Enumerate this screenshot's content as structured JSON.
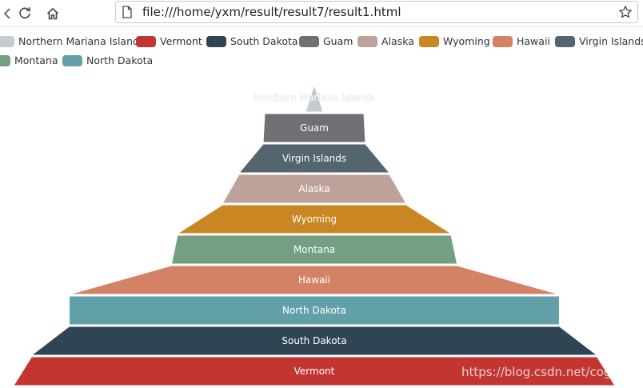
{
  "browser": {
    "url": "file:///home/yxm/result/result7/result1.html",
    "icons": {
      "reload": "reload-icon",
      "home": "home-icon",
      "page": "page-icon",
      "bookmark": "star-icon"
    }
  },
  "chart_data": {
    "type": "funnel",
    "sort": "ascending",
    "categories": [
      "Northern Mariana Islands",
      "Guam",
      "Virgin Islands",
      "Alaska",
      "Wyoming",
      "Montana",
      "Hawaii",
      "North Dakota",
      "South Dakota",
      "Vermont"
    ],
    "series": [
      {
        "values": [
          2,
          33,
          34,
          50,
          61,
          91,
          95,
          163,
          163,
          188
        ]
      }
    ],
    "legend": {
      "position": "top-left",
      "order": [
        "Northern Mariana Islands",
        "Vermont",
        "South Dakota",
        "Guam",
        "Alaska",
        "Wyoming",
        "Hawaii",
        "Virgin Islands",
        "Montana",
        "North Dakota"
      ]
    },
    "colors": {
      "Northern Mariana Islands": "#c4ccd3",
      "Vermont": "#c23531",
      "South Dakota": "#2f4554",
      "Guam": "#6e7074",
      "Alaska": "#bda29a",
      "Wyoming": "#ca8622",
      "Hawaii": "#d48265",
      "Virgin Islands": "#546570",
      "Montana": "#749f83",
      "North Dakota": "#61a0a8"
    },
    "label_color": "#ffffff",
    "label_position": "inside"
  },
  "watermark": "https://blog.csdn.net/cogk_bala"
}
